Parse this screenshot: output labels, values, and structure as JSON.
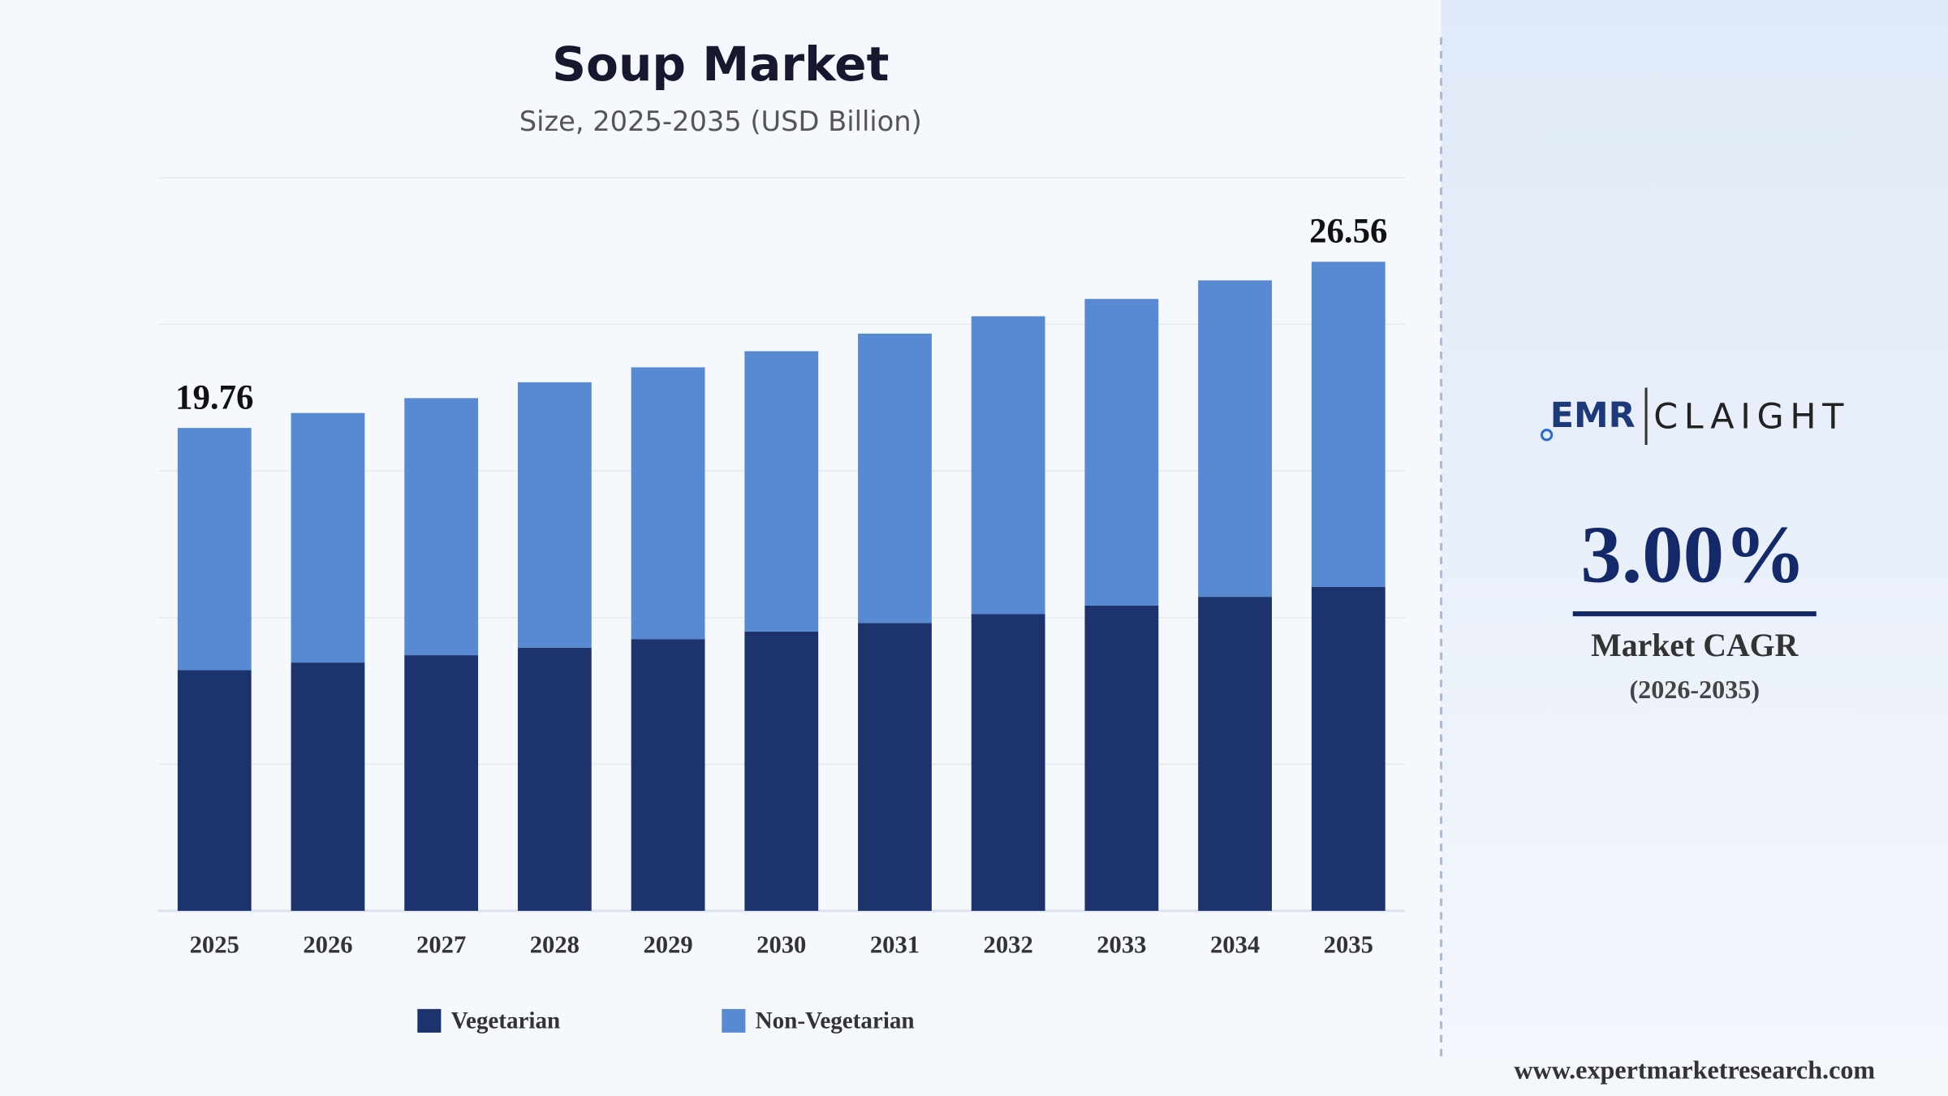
{
  "chart_data": {
    "type": "stacked_bar",
    "title": "Soup Market",
    "subtitle": "Size, 2025-2035 (USD Billion)",
    "categories": [
      "2025",
      "2026",
      "2027",
      "2028",
      "2029",
      "2030",
      "2031",
      "2032",
      "2033",
      "2034",
      "2035"
    ],
    "series": [
      {
        "name": "Vegetarian",
        "color": "#1c336e",
        "values": [
          9.85,
          10.16,
          10.46,
          10.77,
          11.12,
          11.43,
          11.78,
          12.14,
          12.49,
          12.85,
          13.26
        ]
      },
      {
        "name": "Non-Vegetarian",
        "color": "#5889d3",
        "values": [
          9.91,
          10.21,
          10.52,
          10.86,
          11.12,
          11.47,
          11.84,
          12.19,
          12.55,
          12.95,
          13.3
        ]
      }
    ],
    "annotations": [
      {
        "x": "2025",
        "text": "19.76"
      },
      {
        "x": "2035",
        "text": "26.56"
      }
    ],
    "ylim": [
      0,
      30
    ],
    "yticks": [
      0,
      6,
      12,
      18,
      24,
      30
    ],
    "grid": true,
    "legend": "bottom"
  },
  "brand": {
    "logo_left": "EMR",
    "logo_right": "CLAIGHT"
  },
  "cagr": {
    "value": "3.00%",
    "label": "Market CAGR",
    "period": "(2026-2035)"
  },
  "footer": "www.expertmarketresearch.com"
}
